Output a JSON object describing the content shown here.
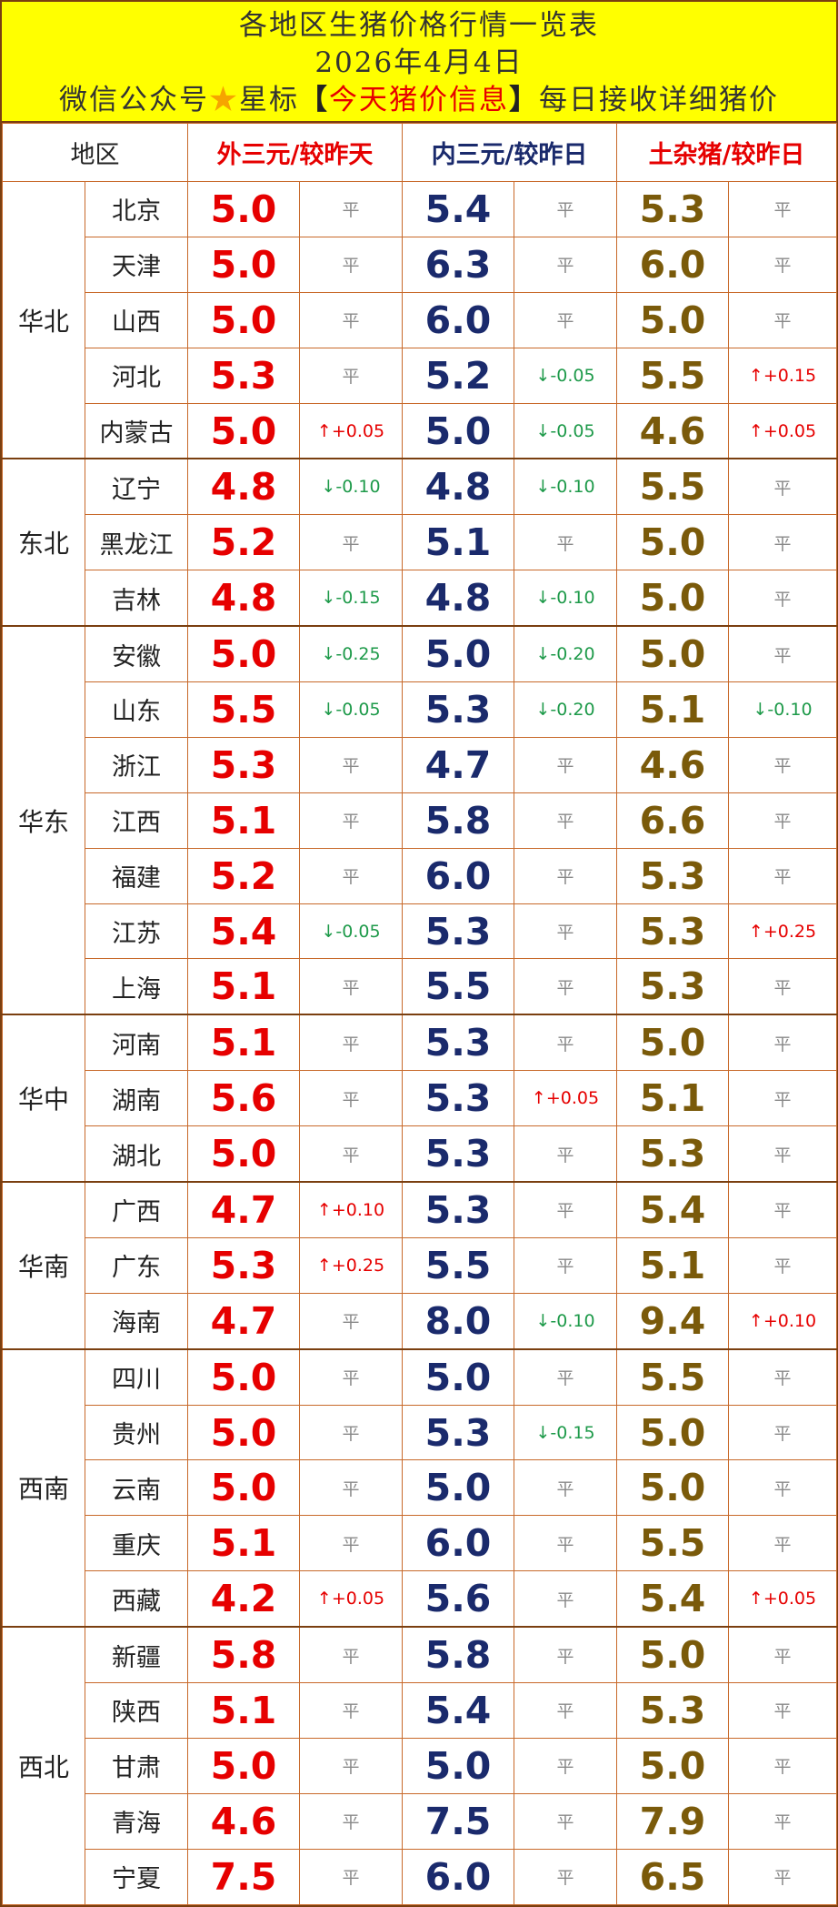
{
  "header": {
    "title": "各地区生猪价格行情一览表",
    "date": "2026年4月4日",
    "promo_pre": "微信公众号",
    "star": "★",
    "promo_star_label": "星标",
    "bracket_open": "【",
    "public_account": "今天猪价信息",
    "bracket_close": "】",
    "promo_post": "每日接收详细猪价"
  },
  "columns": {
    "region": "地区",
    "outer": "外三元/较昨天",
    "inner": "内三元/较昨日",
    "local": "土杂猪/较昨日"
  },
  "flat_label": "平",
  "groups": [
    {
      "name": "华北",
      "rows": [
        {
          "province": "北京",
          "outer": "5.0",
          "outer_change": "平",
          "inner": "5.4",
          "inner_change": "平",
          "local": "5.3",
          "local_change": "平"
        },
        {
          "province": "天津",
          "outer": "5.0",
          "outer_change": "平",
          "inner": "6.3",
          "inner_change": "平",
          "local": "6.0",
          "local_change": "平"
        },
        {
          "province": "山西",
          "outer": "5.0",
          "outer_change": "平",
          "inner": "6.0",
          "inner_change": "平",
          "local": "5.0",
          "local_change": "平"
        },
        {
          "province": "河北",
          "outer": "5.3",
          "outer_change": "平",
          "inner": "5.2",
          "inner_change": "↓-0.05",
          "local": "5.5",
          "local_change": "↑+0.15"
        },
        {
          "province": "内蒙古",
          "outer": "5.0",
          "outer_change": "↑+0.05",
          "inner": "5.0",
          "inner_change": "↓-0.05",
          "local": "4.6",
          "local_change": "↑+0.05"
        }
      ]
    },
    {
      "name": "东北",
      "rows": [
        {
          "province": "辽宁",
          "outer": "4.8",
          "outer_change": "↓-0.10",
          "inner": "4.8",
          "inner_change": "↓-0.10",
          "local": "5.5",
          "local_change": "平"
        },
        {
          "province": "黑龙江",
          "outer": "5.2",
          "outer_change": "平",
          "inner": "5.1",
          "inner_change": "平",
          "local": "5.0",
          "local_change": "平"
        },
        {
          "province": "吉林",
          "outer": "4.8",
          "outer_change": "↓-0.15",
          "inner": "4.8",
          "inner_change": "↓-0.10",
          "local": "5.0",
          "local_change": "平"
        }
      ]
    },
    {
      "name": "华东",
      "rows": [
        {
          "province": "安徽",
          "outer": "5.0",
          "outer_change": "↓-0.25",
          "inner": "5.0",
          "inner_change": "↓-0.20",
          "local": "5.0",
          "local_change": "平"
        },
        {
          "province": "山东",
          "outer": "5.5",
          "outer_change": "↓-0.05",
          "inner": "5.3",
          "inner_change": "↓-0.20",
          "local": "5.1",
          "local_change": "↓-0.10"
        },
        {
          "province": "浙江",
          "outer": "5.3",
          "outer_change": "平",
          "inner": "4.7",
          "inner_change": "平",
          "local": "4.6",
          "local_change": "平"
        },
        {
          "province": "江西",
          "outer": "5.1",
          "outer_change": "平",
          "inner": "5.8",
          "inner_change": "平",
          "local": "6.6",
          "local_change": "平"
        },
        {
          "province": "福建",
          "outer": "5.2",
          "outer_change": "平",
          "inner": "6.0",
          "inner_change": "平",
          "local": "5.3",
          "local_change": "平"
        },
        {
          "province": "江苏",
          "outer": "5.4",
          "outer_change": "↓-0.05",
          "inner": "5.3",
          "inner_change": "平",
          "local": "5.3",
          "local_change": "↑+0.25"
        },
        {
          "province": "上海",
          "outer": "5.1",
          "outer_change": "平",
          "inner": "5.5",
          "inner_change": "平",
          "local": "5.3",
          "local_change": "平"
        }
      ]
    },
    {
      "name": "华中",
      "rows": [
        {
          "province": "河南",
          "outer": "5.1",
          "outer_change": "平",
          "inner": "5.3",
          "inner_change": "平",
          "local": "5.0",
          "local_change": "平"
        },
        {
          "province": "湖南",
          "outer": "5.6",
          "outer_change": "平",
          "inner": "5.3",
          "inner_change": "↑+0.05",
          "local": "5.1",
          "local_change": "平"
        },
        {
          "province": "湖北",
          "outer": "5.0",
          "outer_change": "平",
          "inner": "5.3",
          "inner_change": "平",
          "local": "5.3",
          "local_change": "平"
        }
      ]
    },
    {
      "name": "华南",
      "rows": [
        {
          "province": "广西",
          "outer": "4.7",
          "outer_change": "↑+0.10",
          "inner": "5.3",
          "inner_change": "平",
          "local": "5.4",
          "local_change": "平"
        },
        {
          "province": "广东",
          "outer": "5.3",
          "outer_change": "↑+0.25",
          "inner": "5.5",
          "inner_change": "平",
          "local": "5.1",
          "local_change": "平"
        },
        {
          "province": "海南",
          "outer": "4.7",
          "outer_change": "平",
          "inner": "8.0",
          "inner_change": "↓-0.10",
          "local": "9.4",
          "local_change": "↑+0.10"
        }
      ]
    },
    {
      "name": "西南",
      "rows": [
        {
          "province": "四川",
          "outer": "5.0",
          "outer_change": "平",
          "inner": "5.0",
          "inner_change": "平",
          "local": "5.5",
          "local_change": "平"
        },
        {
          "province": "贵州",
          "outer": "5.0",
          "outer_change": "平",
          "inner": "5.3",
          "inner_change": "↓-0.15",
          "local": "5.0",
          "local_change": "平"
        },
        {
          "province": "云南",
          "outer": "5.0",
          "outer_change": "平",
          "inner": "5.0",
          "inner_change": "平",
          "local": "5.0",
          "local_change": "平"
        },
        {
          "province": "重庆",
          "outer": "5.1",
          "outer_change": "平",
          "inner": "6.0",
          "inner_change": "平",
          "local": "5.5",
          "local_change": "平"
        },
        {
          "province": "西藏",
          "outer": "4.2",
          "outer_change": "↑+0.05",
          "inner": "5.6",
          "inner_change": "平",
          "local": "5.4",
          "local_change": "↑+0.05"
        }
      ]
    },
    {
      "name": "西北",
      "rows": [
        {
          "province": "新疆",
          "outer": "5.8",
          "outer_change": "平",
          "inner": "5.8",
          "inner_change": "平",
          "local": "5.0",
          "local_change": "平"
        },
        {
          "province": "陕西",
          "outer": "5.1",
          "outer_change": "平",
          "inner": "5.4",
          "inner_change": "平",
          "local": "5.3",
          "local_change": "平"
        },
        {
          "province": "甘肃",
          "outer": "5.0",
          "outer_change": "平",
          "inner": "5.0",
          "inner_change": "平",
          "local": "5.0",
          "local_change": "平"
        },
        {
          "province": "青海",
          "outer": "4.6",
          "outer_change": "平",
          "inner": "7.5",
          "inner_change": "平",
          "local": "7.9",
          "local_change": "平"
        },
        {
          "province": "宁夏",
          "outer": "7.5",
          "outer_change": "平",
          "inner": "6.0",
          "inner_change": "平",
          "local": "6.5",
          "local_change": "平"
        }
      ]
    }
  ],
  "colors": {
    "header_bg": "#ffff00",
    "border": "#c8692a",
    "outer_price": "#e60000",
    "inner_price": "#1a2a6c",
    "local_price": "#7a5a0a",
    "up": "#e60000",
    "down": "#1e9a4a",
    "flat": "#888888",
    "star": "#f6a400"
  }
}
